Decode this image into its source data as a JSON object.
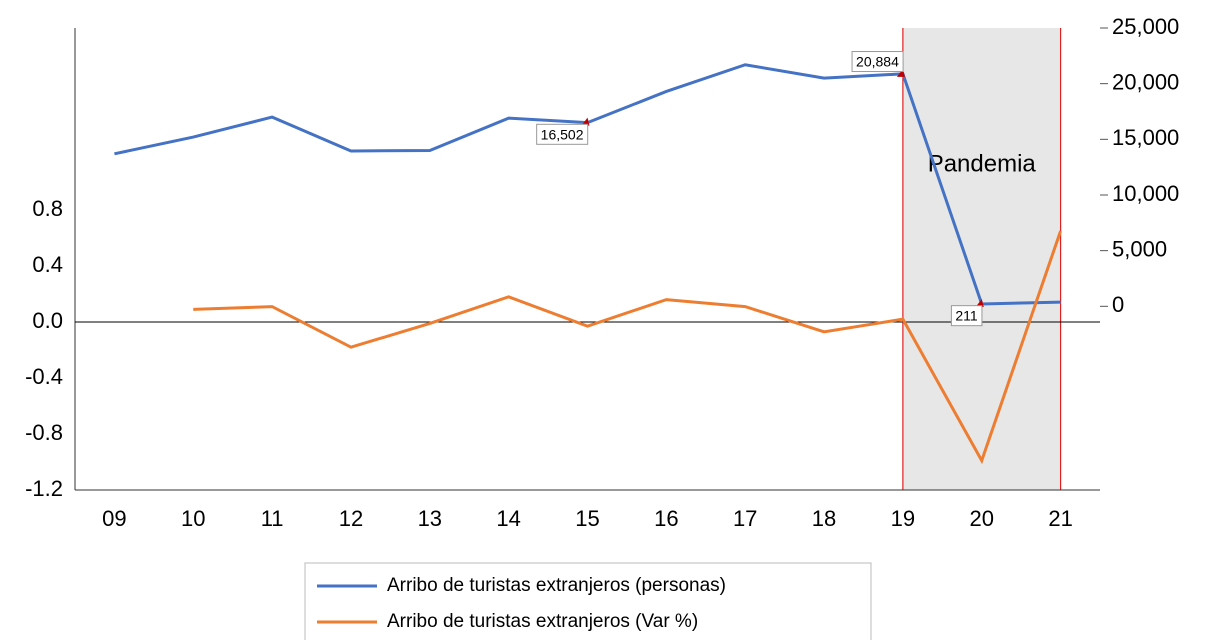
{
  "chart_data": {
    "type": "line",
    "categories": [
      "09",
      "10",
      "11",
      "12",
      "13",
      "14",
      "15",
      "16",
      "17",
      "18",
      "19",
      "20",
      "21"
    ],
    "series": [
      {
        "name": "Arribo de turistas extranjeros (personas)",
        "color": "#4472c4",
        "axis": "y2",
        "values": [
          13700,
          15200,
          17000,
          13950,
          14000,
          16900,
          16502,
          19300,
          21700,
          20500,
          20884,
          211,
          380
        ],
        "value_labels": [
          null,
          null,
          null,
          null,
          null,
          null,
          "16,502",
          null,
          null,
          null,
          "20,884",
          "211",
          null
        ]
      },
      {
        "name": "Arribo de turistas extranjeros (Var %)",
        "color": "#ed7d31",
        "values": [
          null,
          0.09,
          0.11,
          -0.18,
          -0.01,
          0.18,
          -0.03,
          0.16,
          0.11,
          -0.07,
          0.02,
          -0.99,
          0.65
        ],
        "value_labels": [
          null,
          null,
          null,
          null,
          null,
          null,
          null,
          null,
          null,
          null,
          null,
          null,
          null
        ]
      }
    ],
    "ylim": [
      -1.2,
      2.1
    ],
    "yticks": [
      -1.2,
      -0.8,
      -0.4,
      {
        "value": 0,
        "label": "0.0"
      },
      0.4,
      0.8
    ],
    "y2lim": [
      -16500,
      25000
    ],
    "y2ticks": [
      0,
      {
        "value": 5000,
        "label": "5,000"
      },
      {
        "value": 10000,
        "label": "10,000"
      },
      {
        "value": 15000,
        "label": "15,000"
      },
      {
        "value": 20000,
        "label": "20,000"
      },
      {
        "value": 25000,
        "label": "25,000"
      }
    ],
    "annotations": [
      {
        "text": "Pandemia",
        "from": "19",
        "to": "21"
      }
    ],
    "legend": "bottom"
  }
}
